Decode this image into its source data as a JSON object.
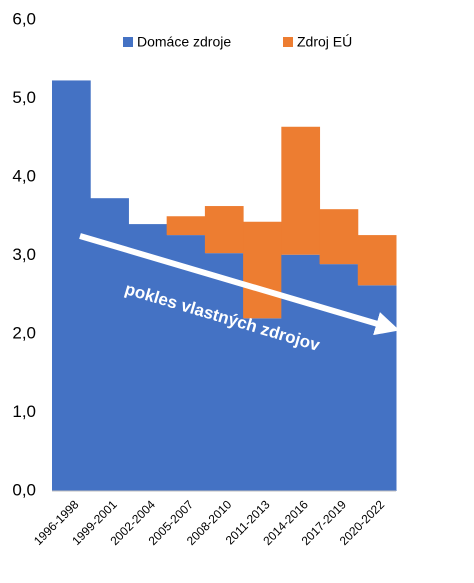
{
  "chart_data": {
    "type": "stacked_bar",
    "categories": [
      "1996-1998",
      "1999-2001",
      "2002-2004",
      "2005-2007",
      "2008-2010",
      "2011-2013",
      "2014-2016",
      "2017-2019",
      "2020-2022"
    ],
    "series": [
      {
        "name": "Domáce zdroje",
        "color": "#4472c4",
        "values": [
          5.23,
          3.73,
          3.4,
          3.26,
          3.03,
          2.2,
          3.01,
          2.89,
          2.62
        ]
      },
      {
        "name": "Zdroj EÚ",
        "color": "#ed7d31",
        "values": [
          0,
          0,
          0,
          0.24,
          0.6,
          1.23,
          1.63,
          0.7,
          0.64
        ]
      }
    ],
    "ylim": [
      0,
      6
    ],
    "yticks": [
      {
        "value": 0,
        "label": "0,0"
      },
      {
        "value": 1,
        "label": "1,0"
      },
      {
        "value": 2,
        "label": "2,0"
      },
      {
        "value": 3,
        "label": "3,0"
      },
      {
        "value": 4,
        "label": "4,0"
      },
      {
        "value": 5,
        "label": "5,0"
      },
      {
        "value": 6,
        "label": "6,0"
      }
    ],
    "grid": false,
    "legend": "top",
    "annotation": "pokles vlastných zdrojov"
  }
}
